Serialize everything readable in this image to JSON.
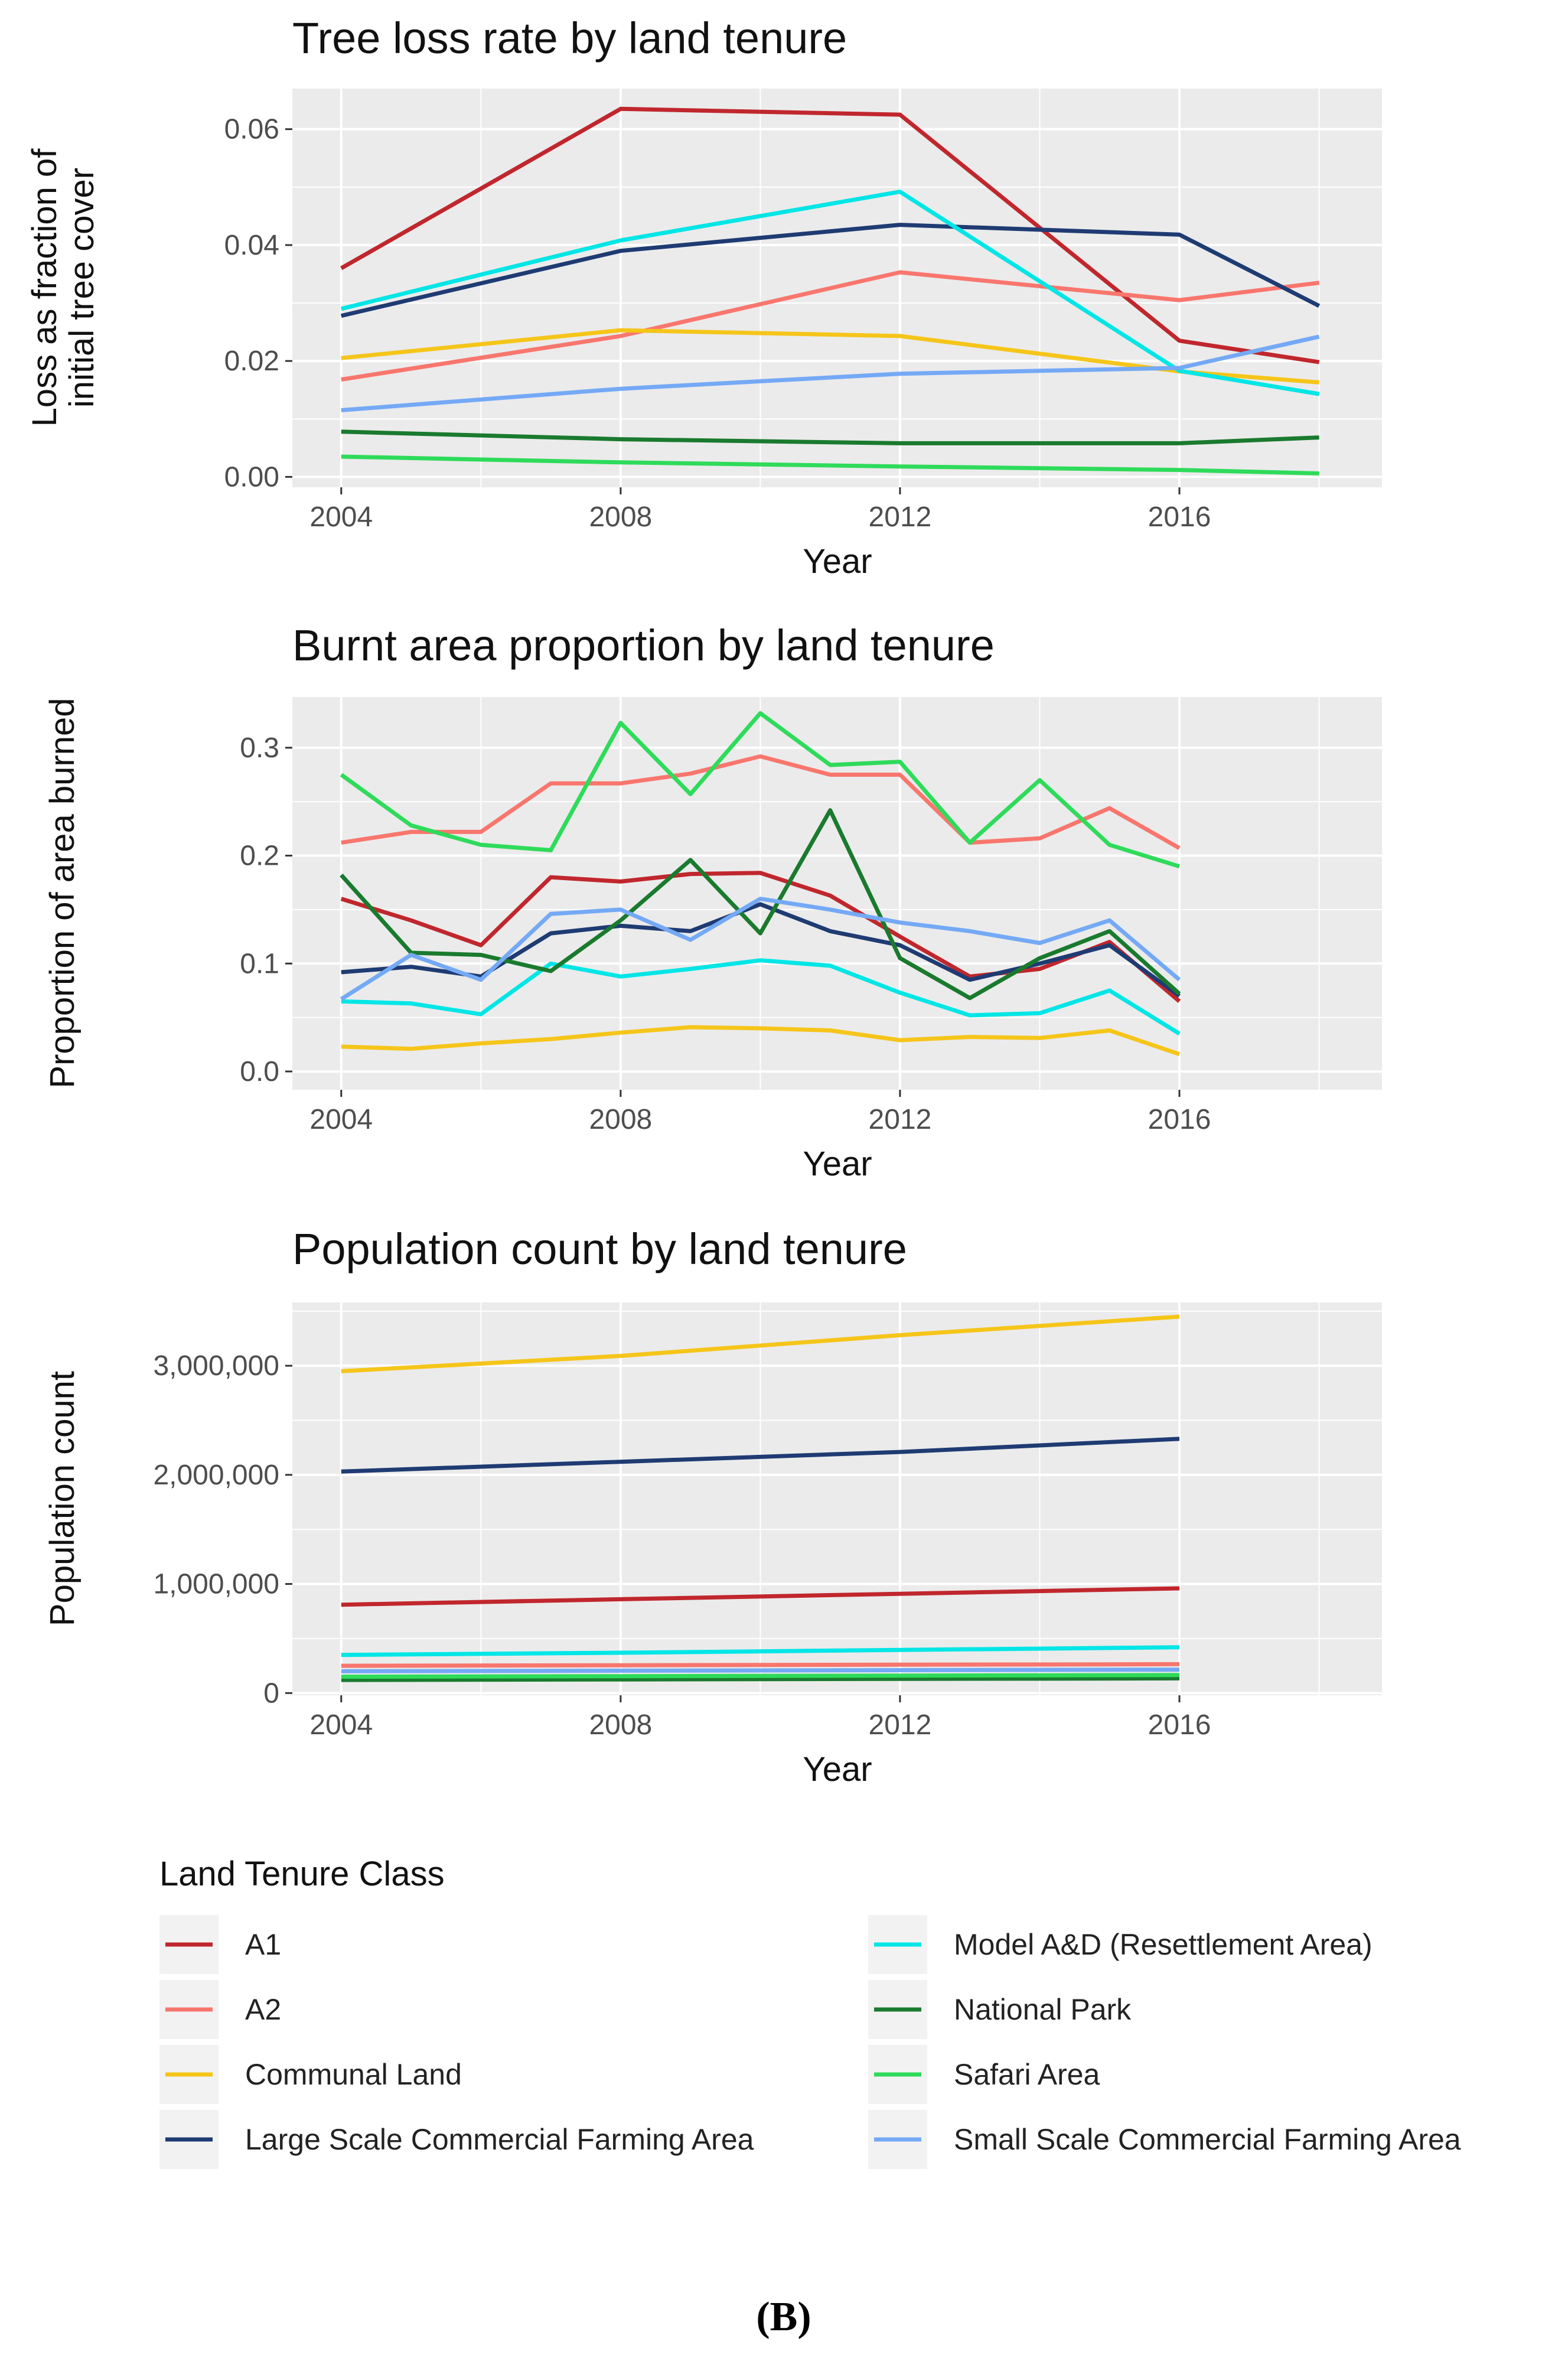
{
  "legend": {
    "title": "Land Tenure Class",
    "entries": [
      {
        "name": "A1",
        "color": "#c0272d"
      },
      {
        "name": "A2",
        "color": "#f8766d"
      },
      {
        "name": "Communal Land",
        "color": "#f5c51a"
      },
      {
        "name": "Large Scale Commercial Farming Area",
        "color": "#1f3b73"
      },
      {
        "name": "Model A&D (Resettlement Area)",
        "color": "#00e5e5"
      },
      {
        "name": "National Park",
        "color": "#1a7a2e"
      },
      {
        "name": "Safari Area",
        "color": "#2edb5a"
      },
      {
        "name": "Small Scale Commercial Farming Area",
        "color": "#74a9f5"
      }
    ]
  },
  "panel_label": "(B)",
  "chart_data": [
    {
      "type": "line",
      "title": "Tree loss rate by land tenure",
      "xlabel": "Year",
      "ylabel": [
        "Loss as fraction of",
        "initial tree cover"
      ],
      "xlim": [
        2003.3,
        2018.9
      ],
      "ylim": [
        -0.0018,
        0.067
      ],
      "xticks": [
        2004,
        2008,
        2012,
        2016
      ],
      "yticks": [
        0.0,
        0.02,
        0.04,
        0.06
      ],
      "ytick_labels": [
        "0.00",
        "0.02",
        "0.04",
        "0.06"
      ],
      "x": [
        2004,
        2008,
        2012,
        2016,
        2018
      ],
      "grid": true,
      "series": [
        {
          "name": "A1",
          "values": [
            0.036,
            0.0635,
            0.0625,
            0.0235,
            0.0198
          ]
        },
        {
          "name": "A2",
          "values": [
            0.0168,
            0.0243,
            0.0353,
            0.0305,
            0.0335
          ]
        },
        {
          "name": "Communal Land",
          "values": [
            0.0205,
            0.0253,
            0.0243,
            0.0182,
            0.0163
          ]
        },
        {
          "name": "Large Scale Commercial Farming Area",
          "values": [
            0.0278,
            0.039,
            0.0435,
            0.0418,
            0.0295
          ]
        },
        {
          "name": "Model A&D (Resettlement Area)",
          "values": [
            0.029,
            0.0408,
            0.0492,
            0.0183,
            0.0143
          ]
        },
        {
          "name": "National Park",
          "values": [
            0.0078,
            0.0065,
            0.0058,
            0.0058,
            0.0068
          ]
        },
        {
          "name": "Safari Area",
          "values": [
            0.0035,
            0.0025,
            0.0018,
            0.0012,
            0.0006
          ]
        },
        {
          "name": "Small Scale Commercial Farming Area",
          "values": [
            0.0115,
            0.0152,
            0.0178,
            0.0188,
            0.0242
          ]
        }
      ]
    },
    {
      "type": "line",
      "title": "Burnt area proportion by land tenure",
      "xlabel": "Year",
      "ylabel": [
        "Proportion of area burned"
      ],
      "xlim": [
        2003.3,
        2018.9
      ],
      "ylim": [
        -0.017,
        0.347
      ],
      "xticks": [
        2004,
        2008,
        2012,
        2016
      ],
      "yticks": [
        0.0,
        0.1,
        0.2,
        0.3
      ],
      "ytick_labels": [
        "0.0",
        "0.1",
        "0.2",
        "0.3"
      ],
      "x": [
        2004,
        2005,
        2006,
        2007,
        2008,
        2009,
        2010,
        2011,
        2012,
        2013,
        2014,
        2015,
        2016
      ],
      "grid": true,
      "series": [
        {
          "name": "A1",
          "values": [
            0.16,
            0.14,
            0.117,
            0.18,
            0.176,
            0.183,
            0.184,
            0.163,
            0.125,
            0.088,
            0.095,
            0.12,
            0.065
          ]
        },
        {
          "name": "A2",
          "values": [
            0.212,
            0.222,
            0.222,
            0.267,
            0.267,
            0.276,
            0.292,
            0.275,
            0.275,
            0.212,
            0.216,
            0.244,
            0.207
          ]
        },
        {
          "name": "Communal Land",
          "values": [
            0.023,
            0.021,
            0.026,
            0.03,
            0.036,
            0.041,
            0.04,
            0.038,
            0.029,
            0.032,
            0.031,
            0.038,
            0.016
          ]
        },
        {
          "name": "Large Scale Commercial Farming Area",
          "values": [
            0.092,
            0.097,
            0.088,
            0.128,
            0.135,
            0.13,
            0.155,
            0.13,
            0.117,
            0.085,
            0.1,
            0.117,
            0.07
          ]
        },
        {
          "name": "Model A&D (Resettlement Area)",
          "values": [
            0.065,
            0.063,
            0.053,
            0.1,
            0.088,
            0.095,
            0.103,
            0.098,
            0.073,
            0.052,
            0.054,
            0.075,
            0.035
          ]
        },
        {
          "name": "National Park",
          "values": [
            0.182,
            0.11,
            0.108,
            0.093,
            0.14,
            0.196,
            0.128,
            0.242,
            0.105,
            0.068,
            0.105,
            0.13,
            0.072
          ]
        },
        {
          "name": "Safari Area",
          "values": [
            0.275,
            0.228,
            0.21,
            0.205,
            0.323,
            0.257,
            0.332,
            0.284,
            0.287,
            0.212,
            0.27,
            0.21,
            0.19
          ]
        },
        {
          "name": "Small Scale Commercial Farming Area",
          "values": [
            0.067,
            0.108,
            0.085,
            0.146,
            0.15,
            0.122,
            0.16,
            0.15,
            0.138,
            0.13,
            0.119,
            0.14,
            0.085
          ]
        }
      ]
    },
    {
      "type": "line",
      "title": "Population count by land tenure",
      "xlabel": "Year",
      "ylabel": [
        "Population count"
      ],
      "xlim": [
        2003.3,
        2018.9
      ],
      "ylim": [
        -20000,
        3580000
      ],
      "xticks": [
        2004,
        2008,
        2012,
        2016
      ],
      "yticks": [
        0,
        1000000,
        2000000,
        3000000
      ],
      "ytick_labels": [
        "0",
        "1,000,000",
        "2,000,000",
        "3,000,000"
      ],
      "x": [
        2004,
        2008,
        2012,
        2016
      ],
      "grid": true,
      "series": [
        {
          "name": "A1",
          "values": [
            810000,
            860000,
            910000,
            960000
          ]
        },
        {
          "name": "A2",
          "values": [
            250000,
            255000,
            260000,
            265000
          ]
        },
        {
          "name": "Communal Land",
          "values": [
            2950000,
            3090000,
            3280000,
            3450000
          ]
        },
        {
          "name": "Large Scale Commercial Farming Area",
          "values": [
            2030000,
            2120000,
            2210000,
            2330000
          ]
        },
        {
          "name": "Model A&D (Resettlement Area)",
          "values": [
            350000,
            370000,
            395000,
            420000
          ]
        },
        {
          "name": "National Park",
          "values": [
            120000,
            125000,
            130000,
            135000
          ]
        },
        {
          "name": "Safari Area",
          "values": [
            150000,
            155000,
            160000,
            165000
          ]
        },
        {
          "name": "Small Scale Commercial Farming Area",
          "values": [
            200000,
            205000,
            210000,
            215000
          ]
        }
      ]
    }
  ]
}
